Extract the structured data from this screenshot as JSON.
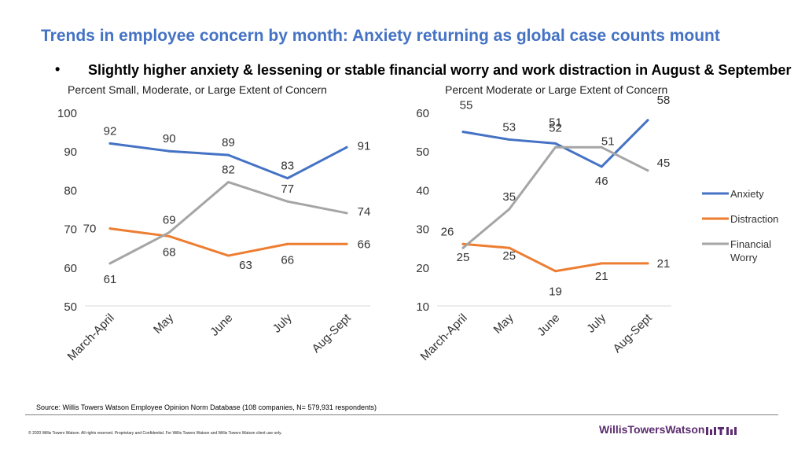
{
  "page": {
    "title": "Trends in employee concern by month: Anxiety returning as global case counts mount",
    "bullet_symbol": "•",
    "bullet": "Slightly higher anxiety & lessening or stable financial worry and work distraction in August & September",
    "source": "Source: Willis Towers Watson Employee Opinion Norm Database (108 companies, N= 579,931 respondents)",
    "copyright": "© 2020 Willis Towers Watson. All rights reserved. Proprietary and Confidential. For Willis Towers Watson and Willis Towers Watson client use only.",
    "logo_text": "WillisTowersWatson",
    "logo_mark": "wtw-logo-mark"
  },
  "colors": {
    "anxiety": "#4472C4",
    "distraction": "#ED7D31",
    "financial": "#A5A5A5",
    "axis": "#D9D9D9",
    "title": "#4472C4"
  },
  "chart_data": [
    {
      "type": "line",
      "title": "Percent Small, Moderate, or Large Extent of Concern",
      "categories": [
        "March-April",
        "May",
        "June",
        "July",
        "Aug-Sept"
      ],
      "ylim": [
        50,
        100
      ],
      "yticks": [
        50,
        60,
        70,
        80,
        90,
        100
      ],
      "grid": false,
      "legend": "none",
      "series": [
        {
          "key": "anxiety",
          "values": [
            92,
            90,
            89,
            83,
            91
          ]
        },
        {
          "key": "distraction",
          "values": [
            70,
            68,
            63,
            66,
            66
          ]
        },
        {
          "key": "financial",
          "values": [
            61,
            69,
            82,
            77,
            74
          ]
        }
      ]
    },
    {
      "type": "line",
      "title": "Percent Moderate or Large Extent of Concern",
      "categories": [
        "March-April",
        "May",
        "June",
        "July",
        "Aug-Sept"
      ],
      "ylim": [
        10,
        60
      ],
      "yticks": [
        10,
        20,
        30,
        40,
        50,
        60
      ],
      "grid": false,
      "legend": "right",
      "series": [
        {
          "key": "anxiety",
          "name": "Anxiety",
          "values": [
            55,
            53,
            52,
            46,
            58
          ]
        },
        {
          "key": "distraction",
          "name": "Distraction",
          "values": [
            26,
            25,
            19,
            21,
            21
          ]
        },
        {
          "key": "financial",
          "name": "Financial Worry",
          "values": [
            25,
            35,
            51,
            51,
            45
          ]
        }
      ]
    }
  ]
}
